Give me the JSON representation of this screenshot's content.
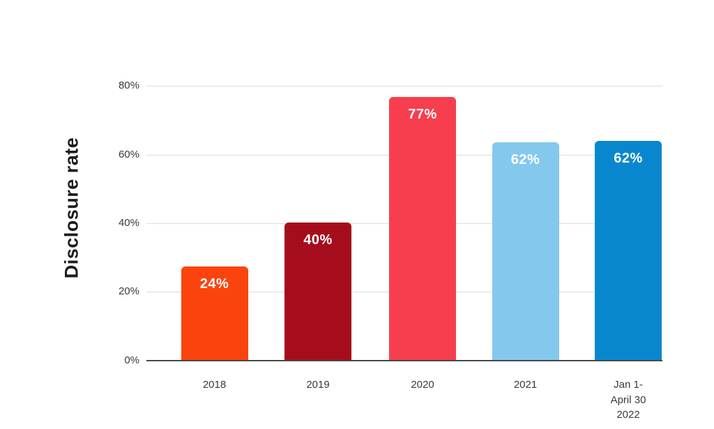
{
  "chart_data": {
    "type": "bar",
    "title": "",
    "xlabel": "",
    "ylabel": "Disclosure rate",
    "categories": [
      "2018",
      "2019",
      "2020",
      "2021",
      "Jan 1- April 30 2022"
    ],
    "category_lines": [
      [
        "2018"
      ],
      [
        "2019"
      ],
      [
        "2020"
      ],
      [
        "2021"
      ],
      [
        "Jan 1-",
        "April 30",
        "2022"
      ]
    ],
    "values": [
      24,
      40,
      77,
      62,
      62
    ],
    "value_labels": [
      "24%",
      "40%",
      "77%",
      "62%",
      "62%"
    ],
    "bar_colors": [
      "#fb430e",
      "#a50d1c",
      "#f73e4e",
      "#85c8ee",
      "#0987ce"
    ],
    "rendered_heights_pct": [
      27.2,
      40,
      76.6,
      63.4,
      63.8
    ],
    "ylim": [
      0,
      80
    ],
    "yticks": [
      "0%",
      "20%",
      "40%",
      "60%",
      "80%"
    ],
    "grid": true,
    "legend": null,
    "colors": {
      "axis_text": "#3a3a3a",
      "gridline": "#dcdcdc",
      "axis_line": "#4a4a4a",
      "bar_label_text": "#ffffff",
      "ylabel_text": "#1d1d1d",
      "background": "#ffffff"
    }
  }
}
